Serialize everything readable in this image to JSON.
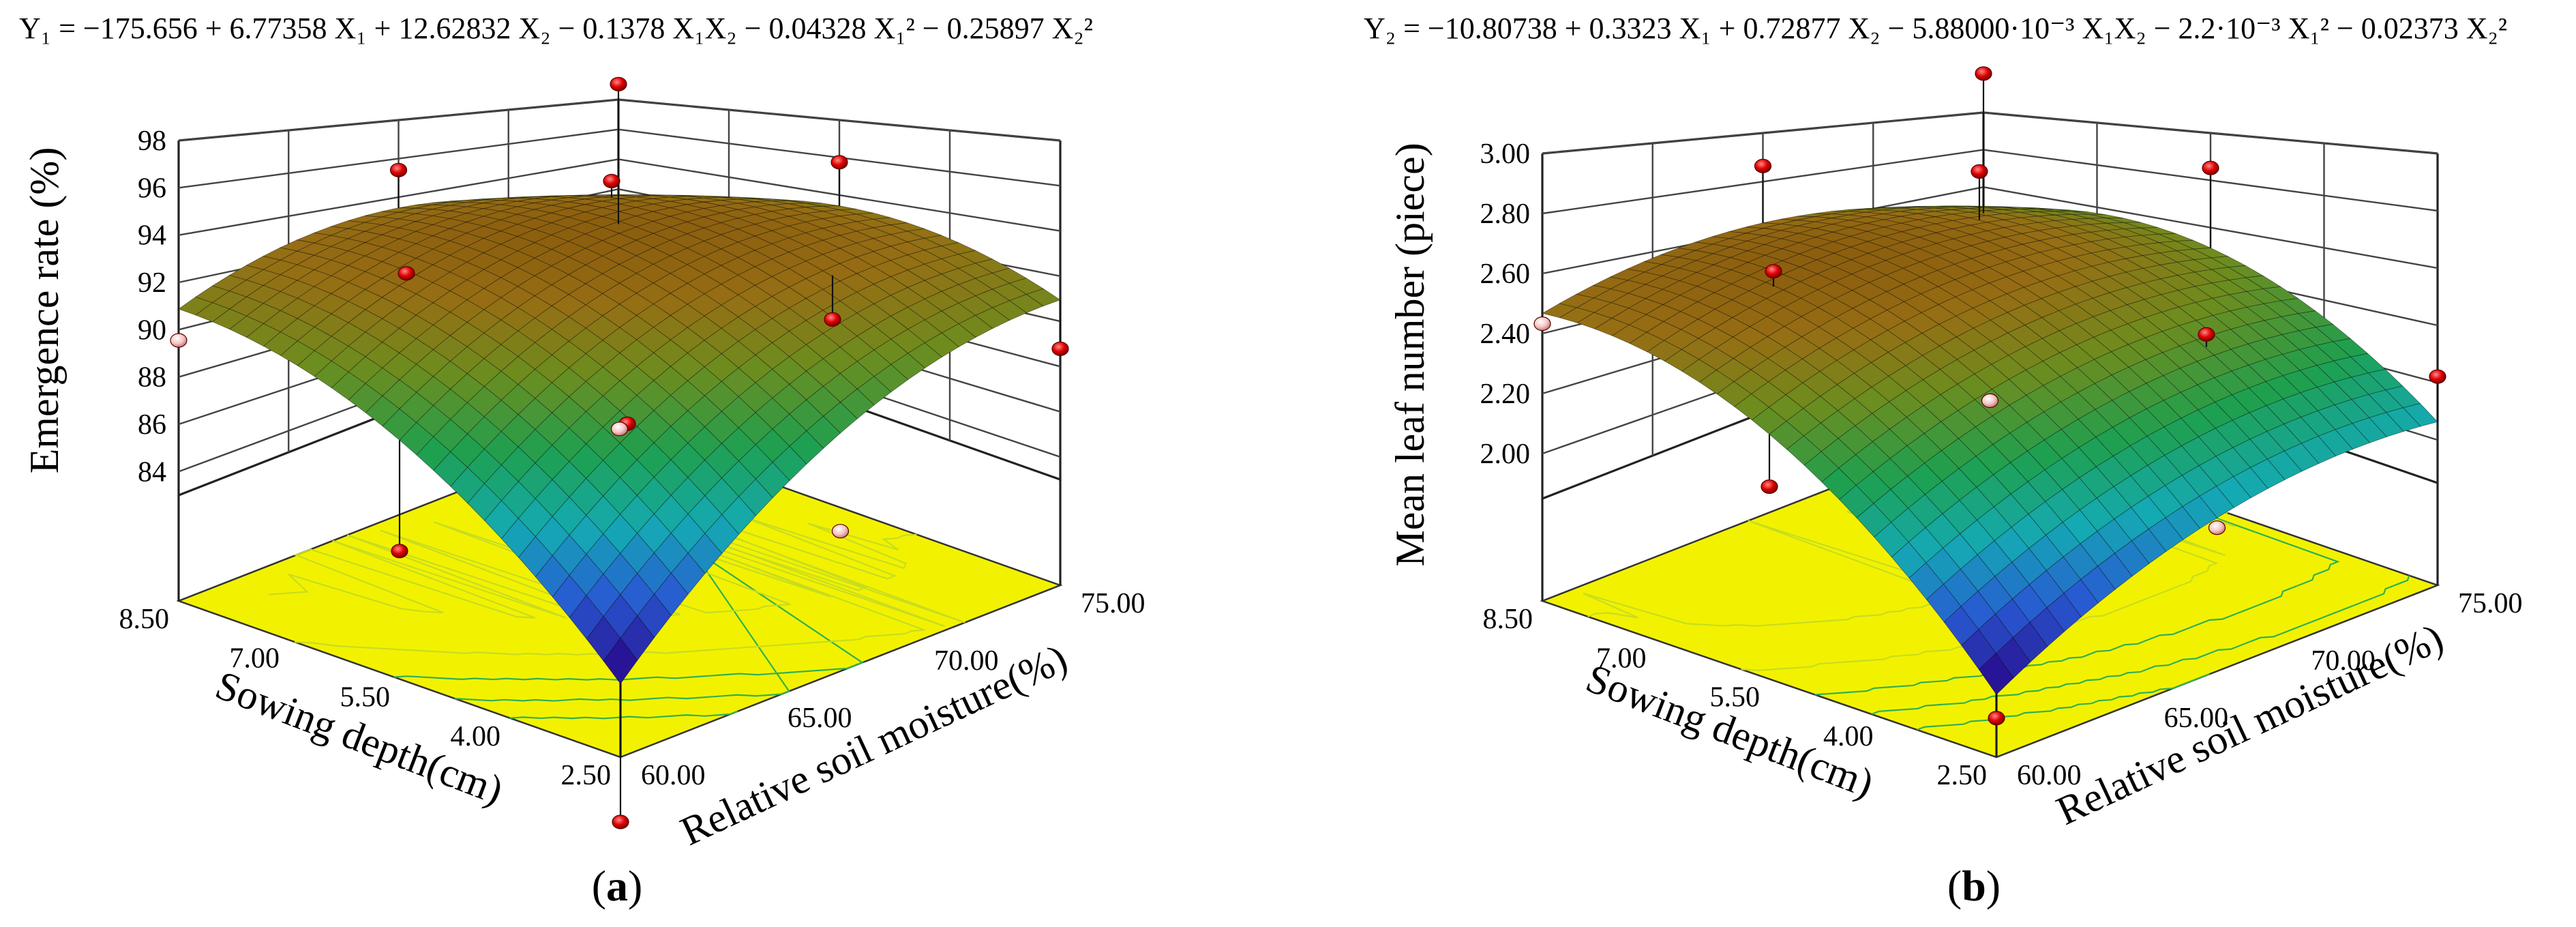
{
  "chart_data": [
    {
      "type": "surface3d",
      "panel": "(a)",
      "panel_letter": "a",
      "equation": {
        "text": "Y₁ = −175.656 + 6.77358 X₁ + 12.62832 X₂ − 0.1378 X₁X₂ − 0.04328 X₁² − 0.25897 X₂²",
        "b0": -175.656,
        "b1": 6.77358,
        "b2": 12.62832,
        "b12": -0.1378,
        "b11": -0.04328,
        "b22": -0.25897
      },
      "zlabel": "Emergence rate (%)",
      "xlabel": "Relative soil moisture(%)",
      "ylabel": "Sowing depth(cm)",
      "x_ticks": [
        "60.00",
        "65.00",
        "70.00",
        "75.00"
      ],
      "y_ticks": [
        "2.50",
        "4.00",
        "5.50",
        "7.00",
        "8.50"
      ],
      "z_ticks": [
        "84",
        "86",
        "88",
        "90",
        "92",
        "94",
        "96",
        "98"
      ],
      "xlim": [
        60,
        75
      ],
      "ylim": [
        2.5,
        8.5
      ],
      "zlim": [
        83,
        98
      ],
      "points": [
        {
          "x": 60,
          "y": 2.5,
          "z": 78.5,
          "above": true
        },
        {
          "x": 60,
          "y": 5.5,
          "z": 86.5,
          "above": true
        },
        {
          "x": 60,
          "y": 8.5,
          "z": 92.0,
          "above": false
        },
        {
          "x": 67.5,
          "y": 2.5,
          "z": 87.0,
          "above": false
        },
        {
          "x": 67.5,
          "y": 8.5,
          "z": 95.5,
          "above": true
        },
        {
          "x": 75,
          "y": 2.5,
          "z": 91.0,
          "above": true
        },
        {
          "x": 75,
          "y": 5.5,
          "z": 95.5,
          "above": true
        },
        {
          "x": 75,
          "y": 8.5,
          "z": 95.5,
          "above": true
        },
        {
          "x": 64,
          "y": 4.0,
          "z": 91.5,
          "above": true
        },
        {
          "x": 71,
          "y": 4.0,
          "z": 92.5,
          "above": true
        },
        {
          "x": 71,
          "y": 7.0,
          "z": 95.0,
          "above": true
        },
        {
          "x": 64,
          "y": 7.0,
          "z": 94.5,
          "above": true
        },
        {
          "x": 67.5,
          "y": 5.5,
          "z": 88.0,
          "above": false
        }
      ]
    },
    {
      "type": "surface3d",
      "panel": "(b)",
      "panel_letter": "b",
      "equation": {
        "text": "Y₂ = −10.80738 + 0.3323 X₁ + 0.72877 X₂ − 5.88000·10⁻³ X₁X₂ − 2.2·10⁻³ X₁² − 0.02373 X₂²",
        "b0": -10.80738,
        "b1": 0.3323,
        "b2": 0.72877,
        "b12": -0.00588,
        "b11": -0.0022,
        "b22": -0.02373
      },
      "zlabel": "Mean leaf number (piece)",
      "xlabel": "Relative soil moisture(%)",
      "ylabel": "Sowing depth(cm)",
      "x_ticks": [
        "60.00",
        "65.00",
        "70.00",
        "75.00"
      ],
      "y_ticks": [
        "2.50",
        "4.00",
        "5.50",
        "7.00",
        "8.50"
      ],
      "z_ticks": [
        "2.00",
        "2.20",
        "2.40",
        "2.60",
        "2.80",
        "3.00"
      ],
      "xlim": [
        60,
        75
      ],
      "ylim": [
        2.5,
        8.5
      ],
      "zlim": [
        1.85,
        3.0
      ],
      "points": [
        {
          "x": 60,
          "y": 2.5,
          "z": 1.93,
          "above": true
        },
        {
          "x": 60,
          "y": 8.5,
          "z": 2.66,
          "above": false
        },
        {
          "x": 60,
          "y": 5.5,
          "z": 2.4,
          "above": true
        },
        {
          "x": 67.5,
          "y": 2.5,
          "z": 2.25,
          "above": false
        },
        {
          "x": 75,
          "y": 2.5,
          "z": 2.45,
          "above": true
        },
        {
          "x": 75,
          "y": 5.5,
          "z": 2.85,
          "above": true
        },
        {
          "x": 75,
          "y": 8.5,
          "z": 2.9,
          "above": true
        },
        {
          "x": 71,
          "y": 4.0,
          "z": 2.6,
          "above": true
        },
        {
          "x": 67.5,
          "y": 8.5,
          "z": 2.88,
          "above": true
        },
        {
          "x": 64,
          "y": 7.0,
          "z": 2.8,
          "above": true
        },
        {
          "x": 71,
          "y": 7.0,
          "z": 2.86,
          "above": true
        },
        {
          "x": 67.5,
          "y": 5.5,
          "z": 2.4,
          "above": false
        }
      ]
    }
  ]
}
